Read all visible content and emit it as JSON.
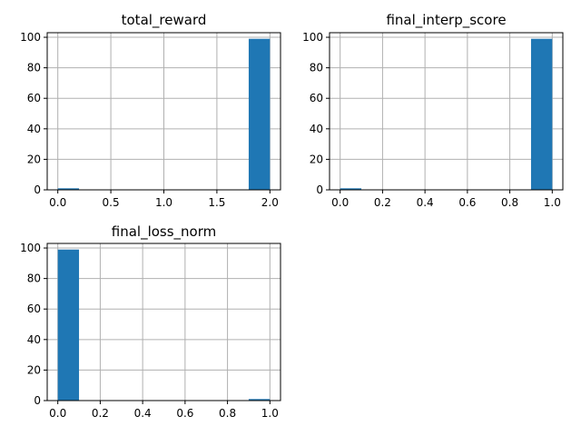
{
  "figure": {
    "background": "#ffffff"
  },
  "chart_data": [
    {
      "type": "bar",
      "title": "total_reward",
      "xlabel": "",
      "ylabel": "",
      "bar_color": "#1f77b4",
      "grid": true,
      "xlim": [
        -0.1,
        2.1
      ],
      "ylim": [
        0,
        103
      ],
      "xticks": [
        0.0,
        0.5,
        1.0,
        1.5,
        2.0
      ],
      "xtick_labels": [
        "0.0",
        "0.5",
        "1.0",
        "1.5",
        "2.0"
      ],
      "yticks": [
        0,
        20,
        40,
        60,
        80,
        100
      ],
      "ytick_labels": [
        "0",
        "20",
        "40",
        "60",
        "80",
        "100"
      ],
      "bins": [
        {
          "x0": 0.0,
          "x1": 0.2,
          "count": 1
        },
        {
          "x0": 0.2,
          "x1": 0.4,
          "count": 0
        },
        {
          "x0": 0.4,
          "x1": 0.6,
          "count": 0
        },
        {
          "x0": 0.6,
          "x1": 0.8,
          "count": 0
        },
        {
          "x0": 0.8,
          "x1": 1.0,
          "count": 0
        },
        {
          "x0": 1.0,
          "x1": 1.2,
          "count": 0
        },
        {
          "x0": 1.2,
          "x1": 1.4,
          "count": 0
        },
        {
          "x0": 1.4,
          "x1": 1.6,
          "count": 0
        },
        {
          "x0": 1.6,
          "x1": 1.8,
          "count": 0
        },
        {
          "x0": 1.8,
          "x1": 2.0,
          "count": 99
        }
      ]
    },
    {
      "type": "bar",
      "title": "final_interp_score",
      "xlabel": "",
      "ylabel": "",
      "bar_color": "#1f77b4",
      "grid": true,
      "xlim": [
        -0.05,
        1.05
      ],
      "ylim": [
        0,
        103
      ],
      "xticks": [
        0.0,
        0.2,
        0.4,
        0.6,
        0.8,
        1.0
      ],
      "xtick_labels": [
        "0.0",
        "0.2",
        "0.4",
        "0.6",
        "0.8",
        "1.0"
      ],
      "yticks": [
        0,
        20,
        40,
        60,
        80,
        100
      ],
      "ytick_labels": [
        "0",
        "20",
        "40",
        "60",
        "80",
        "100"
      ],
      "bins": [
        {
          "x0": 0.0,
          "x1": 0.1,
          "count": 1
        },
        {
          "x0": 0.1,
          "x1": 0.2,
          "count": 0
        },
        {
          "x0": 0.2,
          "x1": 0.3,
          "count": 0
        },
        {
          "x0": 0.3,
          "x1": 0.4,
          "count": 0
        },
        {
          "x0": 0.4,
          "x1": 0.5,
          "count": 0
        },
        {
          "x0": 0.5,
          "x1": 0.6,
          "count": 0
        },
        {
          "x0": 0.6,
          "x1": 0.7,
          "count": 0
        },
        {
          "x0": 0.7,
          "x1": 0.8,
          "count": 0
        },
        {
          "x0": 0.8,
          "x1": 0.9,
          "count": 0
        },
        {
          "x0": 0.9,
          "x1": 1.0,
          "count": 99
        }
      ]
    },
    {
      "type": "bar",
      "title": "final_loss_norm",
      "xlabel": "",
      "ylabel": "",
      "bar_color": "#1f77b4",
      "grid": true,
      "xlim": [
        -0.05,
        1.05
      ],
      "ylim": [
        0,
        103
      ],
      "xticks": [
        0.0,
        0.2,
        0.4,
        0.6,
        0.8,
        1.0
      ],
      "xtick_labels": [
        "0.0",
        "0.2",
        "0.4",
        "0.6",
        "0.8",
        "1.0"
      ],
      "yticks": [
        0,
        20,
        40,
        60,
        80,
        100
      ],
      "ytick_labels": [
        "0",
        "20",
        "40",
        "60",
        "80",
        "100"
      ],
      "bins": [
        {
          "x0": 0.0,
          "x1": 0.1,
          "count": 99
        },
        {
          "x0": 0.1,
          "x1": 0.2,
          "count": 0
        },
        {
          "x0": 0.2,
          "x1": 0.3,
          "count": 0
        },
        {
          "x0": 0.3,
          "x1": 0.4,
          "count": 0
        },
        {
          "x0": 0.4,
          "x1": 0.5,
          "count": 0
        },
        {
          "x0": 0.5,
          "x1": 0.6,
          "count": 0
        },
        {
          "x0": 0.6,
          "x1": 0.7,
          "count": 0
        },
        {
          "x0": 0.7,
          "x1": 0.8,
          "count": 0
        },
        {
          "x0": 0.8,
          "x1": 0.9,
          "count": 0
        },
        {
          "x0": 0.9,
          "x1": 1.0,
          "count": 1
        }
      ]
    }
  ]
}
